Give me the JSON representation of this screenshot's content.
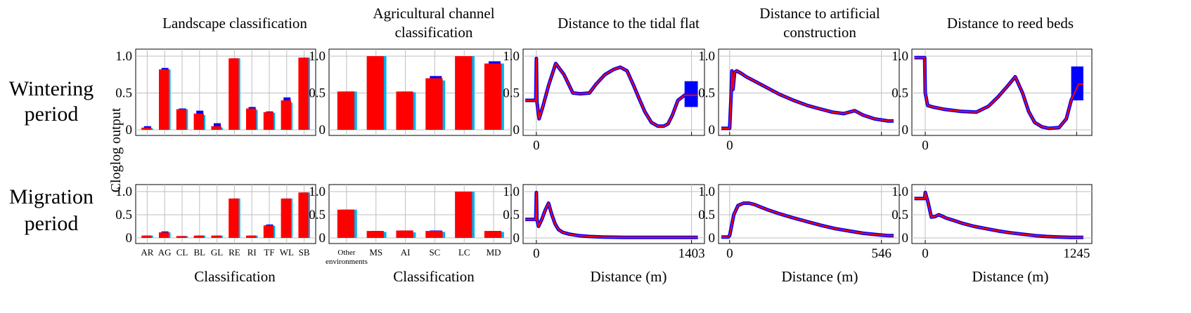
{
  "figure": {
    "column_titles": [
      [
        "Landscape classification"
      ],
      [
        "Agricultural channel",
        "classification"
      ],
      [
        "Distance to the tidal flat"
      ],
      [
        "Distance to artificial",
        "construction"
      ],
      [
        "Distance to reed beds"
      ]
    ],
    "row_labels": [
      [
        "Wintering",
        "period"
      ],
      [
        "Migration",
        "period"
      ]
    ],
    "ylabel": "Cloglog output",
    "xlabels": [
      "Classification",
      "Classification",
      "Distance (m)",
      "Distance (m)",
      "Distance (m)"
    ],
    "colors": {
      "mean": "#ff0000",
      "upper": "#0000ff",
      "lower": "#00b0f0",
      "grid": "#bfbfbf",
      "band": "#0000ff"
    }
  },
  "chart_data": [
    {
      "type": "bar",
      "row": 0,
      "col": 0,
      "categories": [
        "AR",
        "AG",
        "CL",
        "BL",
        "GL",
        "RE",
        "RI",
        "TF",
        "WL",
        "SB"
      ],
      "values": [
        0.03,
        0.82,
        0.28,
        0.22,
        0.05,
        0.97,
        0.29,
        0.24,
        0.4,
        0.98
      ],
      "upper": [
        0.05,
        0.84,
        0.29,
        0.26,
        0.09,
        0.97,
        0.31,
        0.25,
        0.44,
        0.98
      ],
      "lower": [
        0.02,
        0.82,
        0.28,
        0.2,
        0.03,
        0.97,
        0.27,
        0.23,
        0.37,
        0.98
      ],
      "yticks": [
        "0",
        "0.5",
        "1.0"
      ],
      "ylim": [
        0,
        1
      ]
    },
    {
      "type": "bar",
      "row": 0,
      "col": 1,
      "categories": [
        "",
        "MS",
        "AI",
        "SC",
        "LC",
        "MD"
      ],
      "values": [
        0.52,
        1.0,
        0.52,
        0.7,
        1.0,
        0.9
      ],
      "upper": [
        0.52,
        1.0,
        0.52,
        0.73,
        1.0,
        0.93
      ],
      "lower": [
        0.52,
        1.0,
        0.51,
        0.67,
        1.0,
        0.9
      ],
      "yticks": [
        "0",
        "0.5",
        "1.0"
      ],
      "ylim": [
        0,
        1
      ]
    },
    {
      "type": "line",
      "row": 0,
      "col": 2,
      "xlim": [
        -120,
        1520
      ],
      "xticks": [
        "0",
        ""
      ],
      "xtick_values": [
        0,
        1403
      ],
      "yticks": [
        "0",
        "0.5",
        "1.0"
      ],
      "ylim": [
        0,
        1
      ],
      "x": [
        -100,
        -5,
        0,
        5,
        25,
        60,
        110,
        175,
        250,
        330,
        400,
        480,
        540,
        620,
        700,
        760,
        820,
        880,
        930,
        980,
        1040,
        1100,
        1150,
        1190,
        1230,
        1280,
        1340,
        1403,
        1460
      ],
      "y": [
        0.4,
        0.4,
        0.97,
        0.38,
        0.15,
        0.32,
        0.6,
        0.9,
        0.75,
        0.5,
        0.49,
        0.5,
        0.62,
        0.75,
        0.82,
        0.85,
        0.8,
        0.6,
        0.42,
        0.25,
        0.1,
        0.05,
        0.05,
        0.08,
        0.2,
        0.4,
        0.47,
        0.47,
        0.47
      ],
      "band": {
        "x": [
          1340,
          1460
        ],
        "lower": 0.31,
        "upper": 0.66
      }
    },
    {
      "type": "line",
      "row": 0,
      "col": 3,
      "xlim": [
        -40,
        610
      ],
      "xticks": [
        "0",
        ""
      ],
      "xtick_values": [
        0,
        546
      ],
      "yticks": [
        "0",
        "0.5",
        "1.0"
      ],
      "ylim": [
        0,
        1
      ],
      "x": [
        -30,
        0,
        5,
        8,
        12,
        18,
        25,
        40,
        60,
        90,
        130,
        180,
        230,
        280,
        320,
        370,
        410,
        430,
        450,
        480,
        520,
        570,
        590
      ],
      "y": [
        0.02,
        0.02,
        0.45,
        0.8,
        0.55,
        0.78,
        0.8,
        0.77,
        0.72,
        0.66,
        0.58,
        0.48,
        0.4,
        0.33,
        0.29,
        0.24,
        0.22,
        0.24,
        0.26,
        0.2,
        0.15,
        0.12,
        0.12
      ]
    },
    {
      "type": "line",
      "row": 0,
      "col": 4,
      "xlim": [
        -110,
        1370
      ],
      "xticks": [
        "0",
        ""
      ],
      "xtick_values": [
        0,
        1245
      ],
      "yticks": [
        "0",
        "0.5",
        "1.0"
      ],
      "ylim": [
        0,
        1
      ],
      "x": [
        -90,
        -5,
        0,
        20,
        60,
        150,
        300,
        420,
        520,
        600,
        680,
        740,
        800,
        850,
        900,
        960,
        1020,
        1100,
        1160,
        1200,
        1260,
        1300
      ],
      "y": [
        0.98,
        0.98,
        0.5,
        0.33,
        0.31,
        0.28,
        0.25,
        0.24,
        0.32,
        0.45,
        0.6,
        0.72,
        0.5,
        0.25,
        0.1,
        0.04,
        0.02,
        0.03,
        0.15,
        0.4,
        0.62,
        0.62
      ],
      "band": {
        "x": [
          1200,
          1300
        ],
        "lower": 0.4,
        "upper": 0.86
      }
    },
    {
      "type": "bar",
      "row": 1,
      "col": 0,
      "categories": [
        "AR",
        "AG",
        "CL",
        "BL",
        "GL",
        "RE",
        "RI",
        "TF",
        "WL",
        "SB"
      ],
      "values": [
        0.05,
        0.12,
        0.04,
        0.05,
        0.05,
        0.85,
        0.05,
        0.27,
        0.85,
        0.98
      ],
      "upper": [
        0.05,
        0.14,
        0.04,
        0.05,
        0.05,
        0.85,
        0.05,
        0.29,
        0.85,
        0.98
      ],
      "lower": [
        0.05,
        0.12,
        0.04,
        0.05,
        0.05,
        0.85,
        0.05,
        0.26,
        0.85,
        0.98
      ],
      "yticks": [
        "0",
        "0.5",
        "1.0"
      ],
      "ylim": [
        0,
        1
      ]
    },
    {
      "type": "bar",
      "row": 1,
      "col": 1,
      "categories": [
        "Other environments",
        "MS",
        "AI",
        "SC",
        "LC",
        "MD"
      ],
      "values": [
        0.61,
        0.15,
        0.16,
        0.15,
        1.0,
        0.15
      ],
      "upper": [
        0.61,
        0.15,
        0.16,
        0.16,
        1.0,
        0.15
      ],
      "lower": [
        0.61,
        0.13,
        0.12,
        0.13,
        1.0,
        0.13
      ],
      "yticks": [
        "0",
        "0.5",
        "1.0"
      ],
      "ylim": [
        0,
        1
      ]
    },
    {
      "type": "line",
      "row": 1,
      "col": 2,
      "xlim": [
        -120,
        1520
      ],
      "xticks": [
        "0",
        "1403"
      ],
      "xtick_values": [
        0,
        1403
      ],
      "yticks": [
        "0",
        "0.5",
        "1.0"
      ],
      "ylim": [
        0,
        1
      ],
      "x": [
        -100,
        -5,
        0,
        5,
        20,
        50,
        80,
        110,
        140,
        170,
        200,
        240,
        300,
        380,
        480,
        600,
        800,
        1000,
        1200,
        1403,
        1460
      ],
      "y": [
        0.4,
        0.4,
        0.98,
        0.4,
        0.25,
        0.4,
        0.6,
        0.75,
        0.5,
        0.3,
        0.18,
        0.12,
        0.08,
        0.05,
        0.03,
        0.02,
        0.01,
        0.01,
        0.01,
        0.01,
        0.01
      ]
    },
    {
      "type": "line",
      "row": 1,
      "col": 3,
      "xlim": [
        -40,
        610
      ],
      "xticks": [
        "0",
        "546"
      ],
      "xtick_values": [
        0,
        546
      ],
      "yticks": [
        "0",
        "0.5",
        "1.0"
      ],
      "ylim": [
        0,
        1
      ],
      "x": [
        -30,
        -5,
        0,
        5,
        15,
        30,
        50,
        70,
        90,
        110,
        140,
        180,
        230,
        280,
        330,
        380,
        430,
        480,
        530,
        570,
        590
      ],
      "y": [
        0.02,
        0.02,
        0.05,
        0.2,
        0.5,
        0.7,
        0.75,
        0.75,
        0.72,
        0.67,
        0.6,
        0.52,
        0.43,
        0.35,
        0.27,
        0.2,
        0.15,
        0.1,
        0.07,
        0.05,
        0.05
      ]
    },
    {
      "type": "line",
      "row": 1,
      "col": 4,
      "xlim": [
        -110,
        1370
      ],
      "xticks": [
        "0",
        "1245"
      ],
      "xtick_values": [
        0,
        1245
      ],
      "yticks": [
        "0",
        "0.5",
        "1.0"
      ],
      "ylim": [
        0,
        1
      ],
      "x": [
        -90,
        -5,
        0,
        20,
        50,
        80,
        110,
        140,
        170,
        230,
        300,
        400,
        500,
        600,
        700,
        800,
        900,
        1000,
        1100,
        1200,
        1300
      ],
      "y": [
        0.85,
        0.85,
        0.98,
        0.8,
        0.45,
        0.46,
        0.5,
        0.47,
        0.43,
        0.38,
        0.32,
        0.25,
        0.2,
        0.15,
        0.11,
        0.08,
        0.05,
        0.03,
        0.02,
        0.01,
        0.01
      ]
    }
  ]
}
